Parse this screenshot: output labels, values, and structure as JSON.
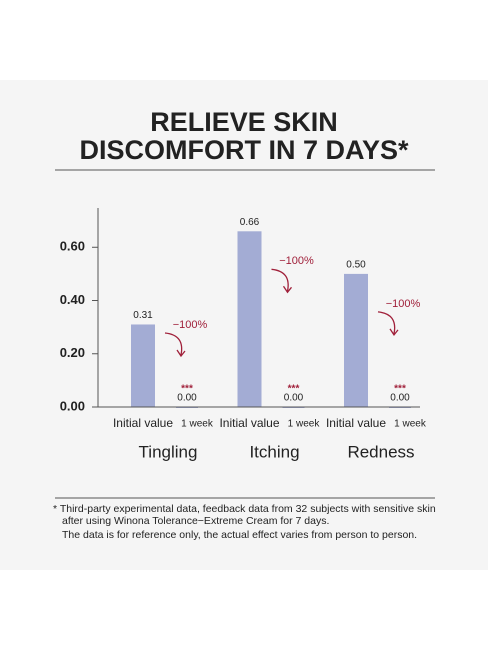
{
  "chart_data": {
    "type": "bar",
    "title": [
      "RELIEVE SKIN",
      "DISCOMFORT IN 7 DAYS*"
    ],
    "categories": [
      "Tingling",
      "Itching",
      "Redness"
    ],
    "series": [
      {
        "name": "Initial value",
        "color": "#a3acd4",
        "values": [
          0.31,
          0.66,
          0.5
        ],
        "value_labels": [
          "0.31",
          "0.66",
          "0.50"
        ]
      },
      {
        "name": "1 week",
        "color": "#a3acd4",
        "values": [
          0,
          0,
          0
        ],
        "value_labels": [
          "0.00",
          "0.00",
          "0.00"
        ]
      }
    ],
    "change_labels": [
      "−100%",
      "−100%",
      "−100%"
    ],
    "significance": [
      "***",
      "***",
      "***"
    ],
    "ylim": [
      0,
      0.74
    ],
    "yticks": [
      {
        "value": 0,
        "label": "0.00"
      },
      {
        "value": 0.2,
        "label": "0.20"
      },
      {
        "value": 0.4,
        "label": "0.40"
      },
      {
        "value": 0.6,
        "label": "0.60"
      }
    ],
    "footnote": [
      "* Third-party experimental data, feedback data from 32 subjects with sensitive skin",
      "after using Winona Tolerance−Extreme Cream for 7 days.",
      "The data is for reference only, the actual effect varies from person to person."
    ]
  }
}
